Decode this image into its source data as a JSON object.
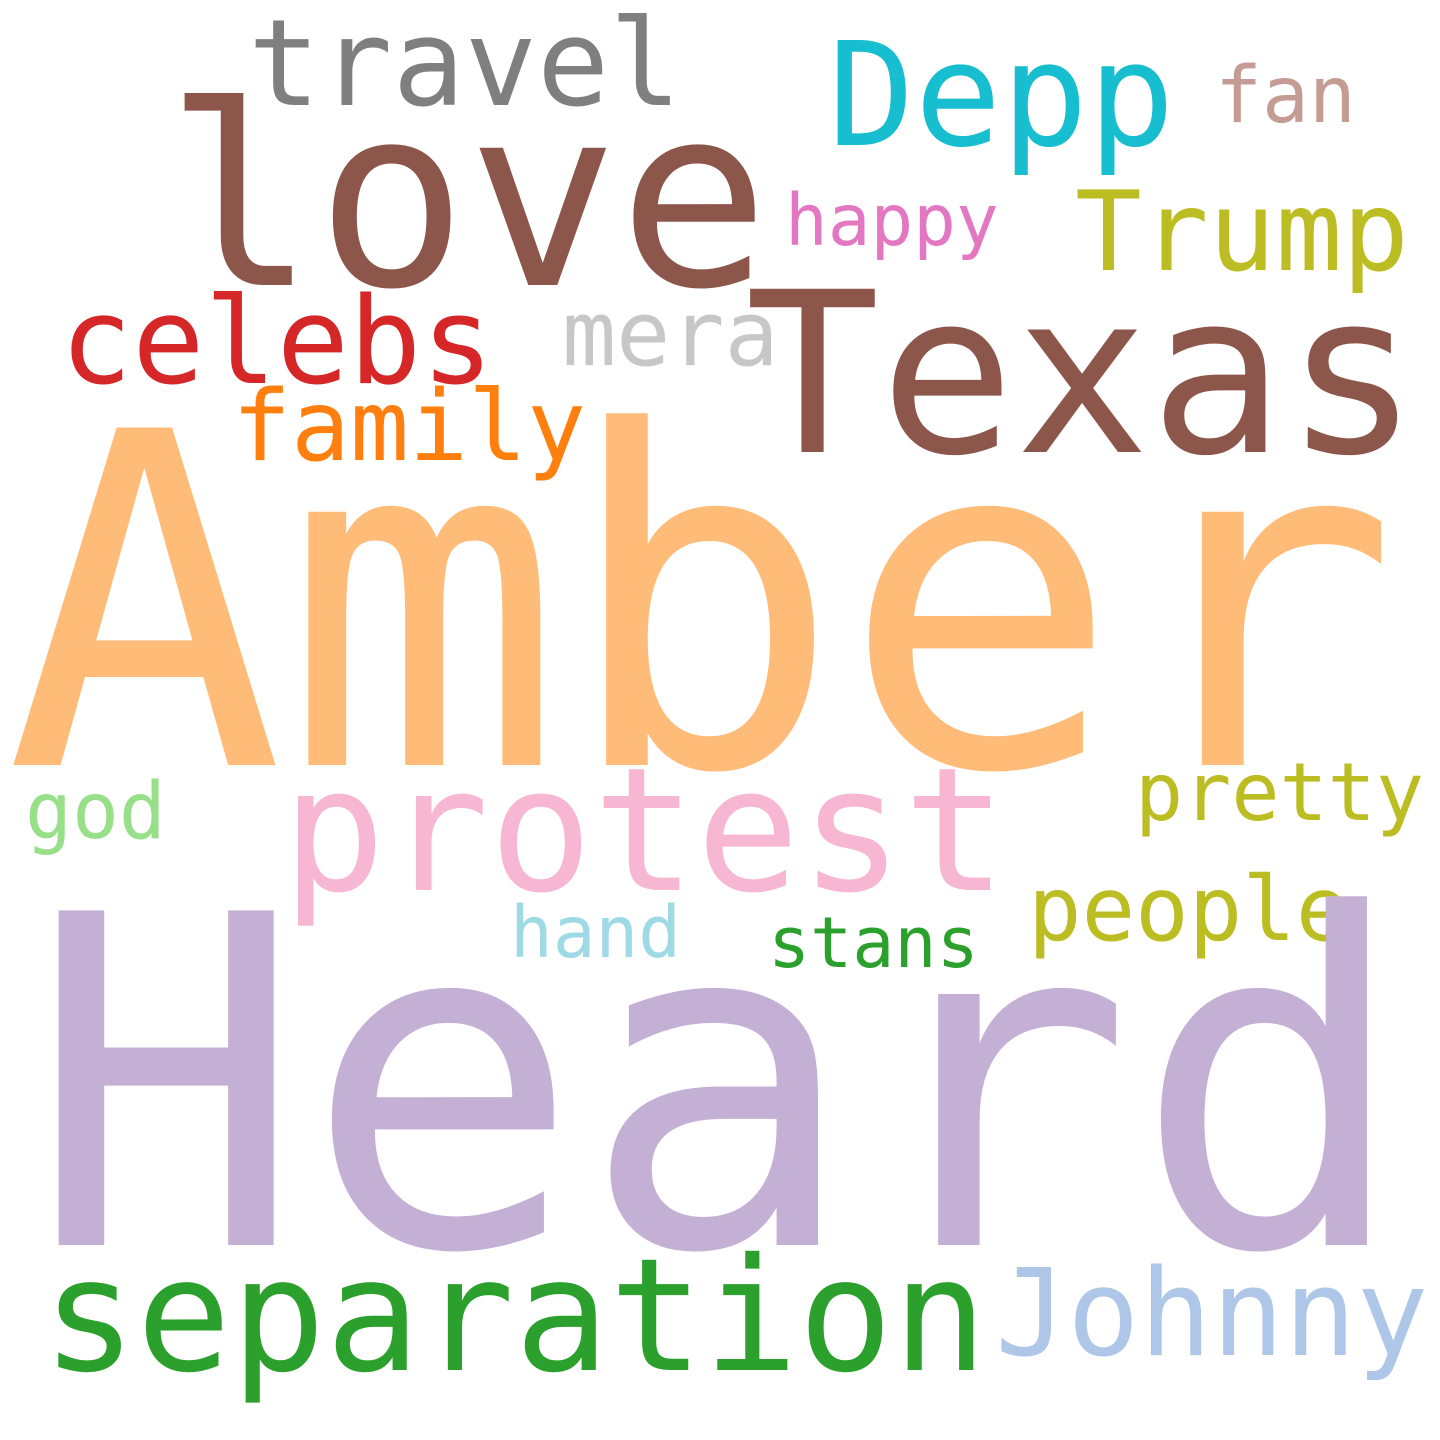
{
  "words": [
    {
      "text": "travel",
      "color": "#7f7f7f"
    },
    {
      "text": "love",
      "color": "#8c564b"
    },
    {
      "text": "Depp",
      "color": "#17becf"
    },
    {
      "text": "fan",
      "color": "#c49c94"
    },
    {
      "text": "happy",
      "color": "#e377c2"
    },
    {
      "text": "Trump",
      "color": "#bcbd22"
    },
    {
      "text": "Texas",
      "color": "#8c564b"
    },
    {
      "text": "celebs",
      "color": "#d62728"
    },
    {
      "text": "mera",
      "color": "#c7c7c7"
    },
    {
      "text": "family",
      "color": "#ff7f0e"
    },
    {
      "text": "Amber",
      "color": "#ffbb78"
    },
    {
      "text": "god",
      "color": "#98df8a"
    },
    {
      "text": "protest",
      "color": "#f7b6d2"
    },
    {
      "text": "pretty",
      "color": "#bcbd22"
    },
    {
      "text": "people",
      "color": "#bcbd22"
    },
    {
      "text": "hand",
      "color": "#9edae5"
    },
    {
      "text": "stans",
      "color": "#2ca02c"
    },
    {
      "text": "Heard",
      "color": "#c5b0d5"
    },
    {
      "text": "separation",
      "color": "#2ca02c"
    },
    {
      "text": "Johnny",
      "color": "#aec7e8"
    }
  ]
}
